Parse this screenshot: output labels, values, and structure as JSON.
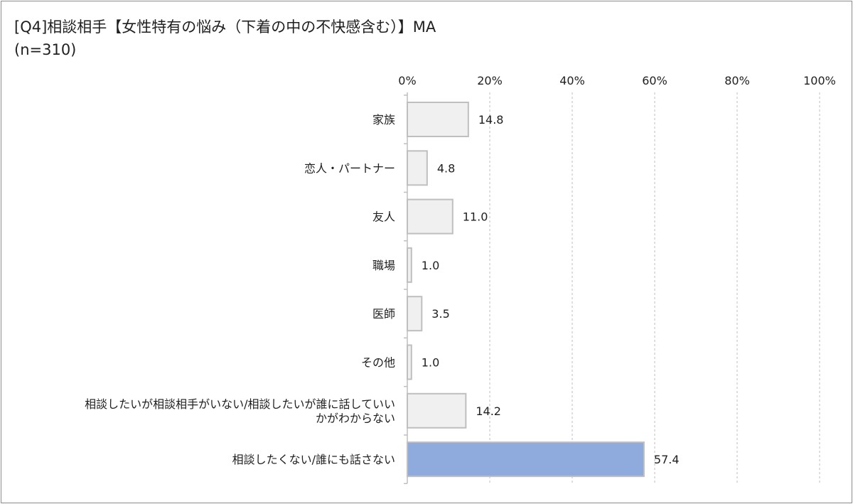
{
  "header": {
    "title": "[Q4]相談相手【女性特有の悩み（下着の中の不快感含む）】MA",
    "subtitle": "(n=310)"
  },
  "colors": {
    "bar_default": "#f0f0f0",
    "bar_default_stroke": "#bfbfbf",
    "bar_highlight": "#8faadc",
    "bar_highlight_stroke": "#bfbfbf",
    "grid": "#bfbfbf",
    "text": "#1f1f1f"
  },
  "chart_data": {
    "type": "bar",
    "orientation": "horizontal",
    "title": "[Q4]相談相手【女性特有の悩み（下着の中の不快感含む）】MA",
    "subtitle": "(n=310)",
    "categories": [
      [
        "家族"
      ],
      [
        "恋人・パートナー"
      ],
      [
        "友人"
      ],
      [
        "職場"
      ],
      [
        "医師"
      ],
      [
        "その他"
      ],
      [
        "相談したいが相談相手がいない/相談したいが誰に話していい",
        "かがわからない"
      ],
      [
        "相談したくない/誰にも話さない"
      ]
    ],
    "values": [
      14.8,
      4.8,
      11.0,
      1.0,
      3.5,
      1.0,
      14.2,
      57.4
    ],
    "value_labels": [
      "14.8",
      "4.8",
      "11.0",
      "1.0",
      "3.5",
      "1.0",
      "14.2",
      "57.4"
    ],
    "highlight": [
      false,
      false,
      false,
      false,
      false,
      false,
      false,
      true
    ],
    "xlim": [
      0,
      100
    ],
    "xticks": [
      0,
      20,
      40,
      60,
      80,
      100
    ],
    "xtick_labels": [
      "0%",
      "20%",
      "40%",
      "60%",
      "80%",
      "100%"
    ],
    "xaxis_position": "top",
    "grid": "vertical dashed",
    "legend": "none"
  }
}
